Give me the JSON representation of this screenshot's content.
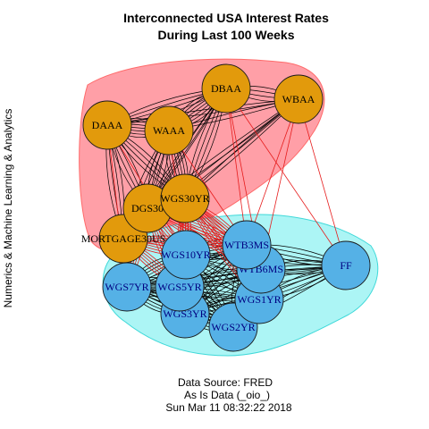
{
  "title": [
    "Interconnected USA Interest Rates",
    "During Last 100 Weeks"
  ],
  "side_label": "Numerics & Machine Learning & Analytics",
  "caption": [
    "Data Source: FRED",
    "As Is Data (_oio_)",
    "Sun Mar 11 08:32:22 2018"
  ],
  "colors": {
    "group1_fill": "#ff9aa2",
    "group1_stroke": "#ff6a6a",
    "group2_fill": "#a8f4f4",
    "group2_stroke": "#3fd9d9",
    "orange_node": "#e29a0c",
    "blue_node": "#55b1e6",
    "intra_edge": "#000000",
    "cross_edge": "#e61c1c",
    "label": "#000080"
  },
  "groups": [
    {
      "name": "group1",
      "members": [
        "DAAA",
        "WAAA",
        "DBAA",
        "WBAA",
        "DGS30",
        "WGS30YR",
        "MORTGAGE30US"
      ]
    },
    {
      "name": "group2",
      "members": [
        "WGS10YR",
        "WTB3MS",
        "WTB6MS",
        "FF",
        "WGS7YR",
        "WGS5YR",
        "WGS3YR",
        "WGS1YR",
        "WGS2YR"
      ]
    }
  ],
  "nodes": [
    {
      "id": "DAAA",
      "label": "DAAA",
      "group": 1
    },
    {
      "id": "WAAA",
      "label": "WAAA",
      "group": 1
    },
    {
      "id": "DBAA",
      "label": "DBAA",
      "group": 1
    },
    {
      "id": "WBAA",
      "label": "WBAA",
      "group": 1
    },
    {
      "id": "DGS30",
      "label": "DGS30",
      "group": 1
    },
    {
      "id": "WGS30YR",
      "label": "WGS30YR",
      "group": 1
    },
    {
      "id": "MORTGAGE30US",
      "label": "MORTGAGE30US",
      "group": 1
    },
    {
      "id": "WGS10YR",
      "label": "WGS10YR",
      "group": 2
    },
    {
      "id": "WTB3MS",
      "label": "WTB3MS",
      "group": 2
    },
    {
      "id": "WTB6MS",
      "label": "WTB6MS",
      "group": 2
    },
    {
      "id": "FF",
      "label": "FF",
      "group": 2
    },
    {
      "id": "WGS7YR",
      "label": "WGS7YR",
      "group": 2
    },
    {
      "id": "WGS5YR",
      "label": "WGS5YR",
      "group": 2
    },
    {
      "id": "WGS3YR",
      "label": "WGS3YR",
      "group": 2
    },
    {
      "id": "WGS1YR",
      "label": "WGS1YR",
      "group": 2
    },
    {
      "id": "WGS2YR",
      "label": "WGS2YR",
      "group": 2
    }
  ],
  "cross_edges": [
    [
      "DBAA",
      "WTB3MS"
    ],
    [
      "DBAA",
      "WTB6MS"
    ],
    [
      "DBAA",
      "FF"
    ],
    [
      "WBAA",
      "WTB3MS"
    ],
    [
      "WBAA",
      "FF"
    ],
    [
      "WBAA",
      "WTB6MS"
    ],
    [
      "DGS30",
      "WGS10YR"
    ],
    [
      "DGS30",
      "WTB3MS"
    ],
    [
      "DGS30",
      "WGS5YR"
    ],
    [
      "DGS30",
      "WGS7YR"
    ],
    [
      "DGS30",
      "WTB6MS"
    ],
    [
      "WGS30YR",
      "WGS10YR"
    ],
    [
      "WGS30YR",
      "WTB3MS"
    ],
    [
      "WGS30YR",
      "WGS5YR"
    ],
    [
      "WGS30YR",
      "WTB6MS"
    ],
    [
      "WGS30YR",
      "WGS1YR"
    ],
    [
      "MORTGAGE30US",
      "WGS10YR"
    ],
    [
      "MORTGAGE30US",
      "WGS7YR"
    ],
    [
      "MORTGAGE30US",
      "WGS5YR"
    ],
    [
      "MORTGAGE30US",
      "WTB3MS"
    ],
    [
      "WAAA",
      "WGS10YR"
    ],
    [
      "WAAA",
      "WTB3MS"
    ],
    [
      "DAAA",
      "WGS10YR"
    ],
    [
      "DAAA",
      "WGS7YR"
    ]
  ]
}
